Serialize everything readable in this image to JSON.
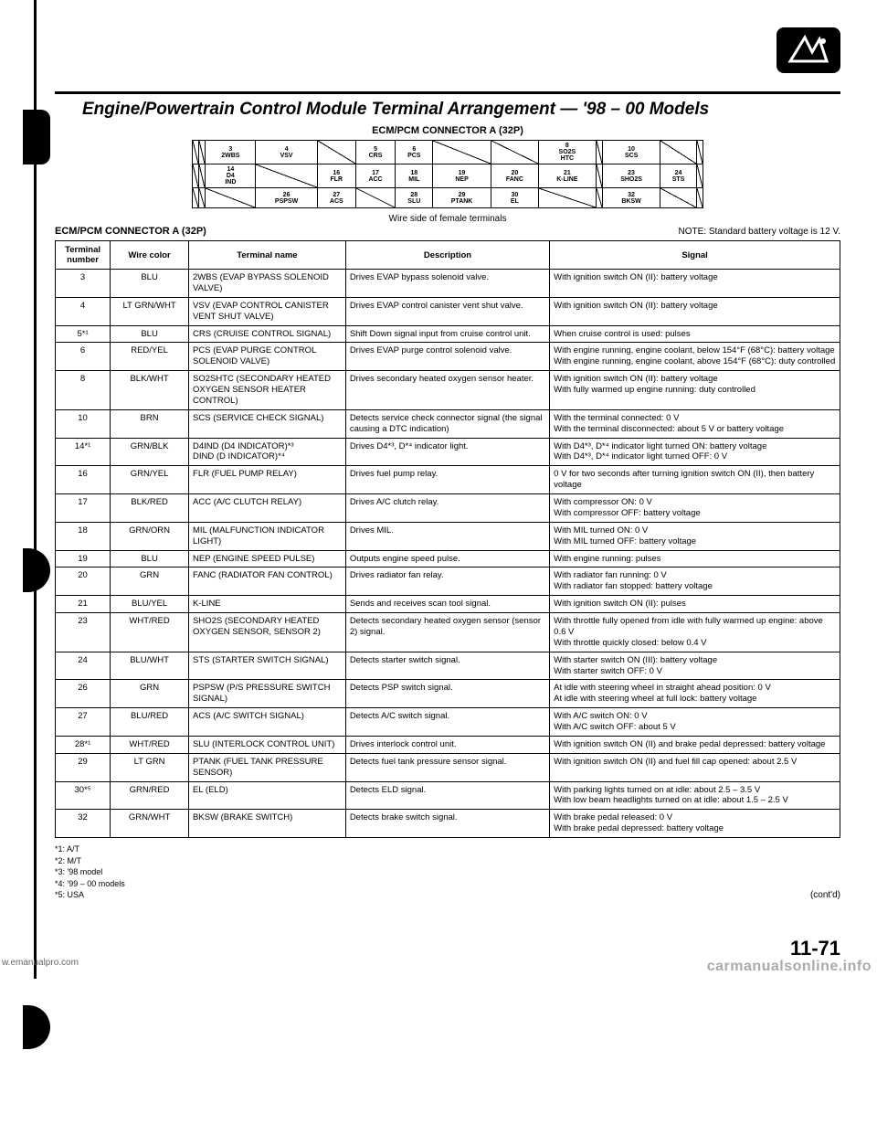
{
  "title": "Engine/Powertrain Control Module Terminal Arrangement — '98 – 00 Models",
  "connector_title": "ECM/PCM CONNECTOR A (32P)",
  "wire_side_note": "Wire side of female terminals",
  "connector_label": "ECM/PCM CONNECTOR A (32P)",
  "note": "NOTE: Standard battery voltage is 12 V.",
  "headers": {
    "terminal": "Terminal number",
    "color": "Wire color",
    "name": "Terminal name",
    "desc": "Description",
    "signal": "Signal"
  },
  "connector_pins": {
    "r1": [
      "",
      "",
      "3\n2WBS",
      "4\nVSV",
      "",
      "5\nCRS",
      "6\nPCS",
      "",
      "",
      "8\nSO2S\nHTC",
      "",
      "10\nSCS",
      "",
      ""
    ],
    "r2": [
      "",
      "",
      "14\nD4\nIND",
      "",
      "16\nFLR",
      "17\nACC",
      "18\nMIL",
      "19\nNEP",
      "20\nFANC",
      "21\nK-LINE",
      "",
      "23\nSHO2S",
      "24\nSTS",
      ""
    ],
    "r3": [
      "",
      "",
      "",
      "26\nPSPSW",
      "27\nACS",
      "",
      "28\nSLU",
      "29\nPTANK",
      "30\nEL",
      "",
      "",
      "32\nBKSW",
      "",
      ""
    ]
  },
  "rows": [
    {
      "t": "3",
      "c": "BLU",
      "n": "2WBS (EVAP BYPASS SOLENOID VALVE)",
      "d": "Drives EVAP bypass solenoid valve.",
      "s": "With ignition switch ON (II): battery voltage"
    },
    {
      "t": "4",
      "c": "LT GRN/WHT",
      "n": "VSV (EVAP CONTROL CANISTER VENT SHUT VALVE)",
      "d": "Drives EVAP control canister vent shut valve.",
      "s": "With ignition switch ON (II): battery voltage"
    },
    {
      "t": "5*¹",
      "c": "BLU",
      "n": "CRS (CRUISE CONTROL SIGNAL)",
      "d": "Shift Down signal input from cruise control unit.",
      "s": "When cruise control is used: pulses"
    },
    {
      "t": "6",
      "c": "RED/YEL",
      "n": "PCS (EVAP PURGE CONTROL SOLENOID VALVE)",
      "d": "Drives EVAP purge control solenoid valve.",
      "s": "With engine running, engine coolant, below 154°F (68°C): battery voltage\nWith engine running, engine coolant, above 154°F (68°C): duty controlled"
    },
    {
      "t": "8",
      "c": "BLK/WHT",
      "n": "SO2SHTC (SECONDARY HEATED OXYGEN SENSOR HEATER CONTROL)",
      "d": "Drives secondary heated oxygen sensor heater.",
      "s": "With ignition switch ON (II): battery voltage\nWith fully warmed up engine running: duty controlled"
    },
    {
      "t": "10",
      "c": "BRN",
      "n": "SCS (SERVICE CHECK SIGNAL)",
      "d": "Detects service check connector signal (the signal causing a DTC indication)",
      "s": "With the terminal connected: 0 V\nWith the terminal disconnected: about 5 V or battery voltage"
    },
    {
      "t": "14*¹",
      "c": "GRN/BLK",
      "n": "D4IND (D4 INDICATOR)*³\nDIND (D INDICATOR)*⁴",
      "d": "Drives D4*³, D*⁴ indicator light.",
      "s": "With D4*³, D*⁴ indicator light turned ON: battery voltage\nWith D4*³, D*⁴ indicator light turned OFF: 0 V"
    },
    {
      "t": "16",
      "c": "GRN/YEL",
      "n": "FLR (FUEL PUMP RELAY)",
      "d": "Drives fuel pump relay.",
      "s": "0 V for two seconds after turning ignition switch ON (II), then battery voltage"
    },
    {
      "t": "17",
      "c": "BLK/RED",
      "n": "ACC (A/C CLUTCH RELAY)",
      "d": "Drives A/C clutch relay.",
      "s": "With compressor ON: 0 V\nWith compressor OFF: battery voltage"
    },
    {
      "t": "18",
      "c": "GRN/ORN",
      "n": "MIL (MALFUNCTION INDICATOR LIGHT)",
      "d": "Drives MIL.",
      "s": "With MIL turned ON: 0 V\nWith MIL turned OFF: battery voltage"
    },
    {
      "t": "19",
      "c": "BLU",
      "n": "NEP (ENGINE SPEED PULSE)",
      "d": "Outputs engine speed pulse.",
      "s": "With engine running: pulses"
    },
    {
      "t": "20",
      "c": "GRN",
      "n": "FANC (RADIATOR FAN CONTROL)",
      "d": "Drives radiator fan relay.",
      "s": "With radiator fan running: 0 V\nWith radiator fan stopped: battery voltage"
    },
    {
      "t": "21",
      "c": "BLU/YEL",
      "n": "K-LINE",
      "d": "Sends and receives scan tool signal.",
      "s": "With ignition switch ON (II): pulses"
    },
    {
      "t": "23",
      "c": "WHT/RED",
      "n": "SHO2S (SECONDARY HEATED OXYGEN SENSOR, SENSOR 2)",
      "d": "Detects secondary heated oxygen sensor (sensor 2) signal.",
      "s": "With throttle fully opened from idle with fully warmed up engine: above 0.6 V\nWith throttle quickly closed: below 0.4 V"
    },
    {
      "t": "24",
      "c": "BLU/WHT",
      "n": "STS (STARTER SWITCH SIGNAL)",
      "d": "Detects starter switch signal.",
      "s": "With starter switch ON (III): battery voltage\nWith starter switch OFF: 0 V"
    },
    {
      "t": "26",
      "c": "GRN",
      "n": "PSPSW (P/S PRESSURE SWITCH SIGNAL)",
      "d": "Detects PSP switch signal.",
      "s": "At idle with steering wheel in straight ahead position: 0 V\nAt idle with steering wheel at full lock: battery voltage"
    },
    {
      "t": "27",
      "c": "BLU/RED",
      "n": "ACS (A/C SWITCH SIGNAL)",
      "d": "Detects A/C switch signal.",
      "s": "With A/C switch ON: 0 V\nWith A/C switch OFF: about 5 V"
    },
    {
      "t": "28*¹",
      "c": "WHT/RED",
      "n": "SLU (INTERLOCK CONTROL UNIT)",
      "d": "Drives interlock control unit.",
      "s": "With ignition switch ON (II) and brake pedal depressed: battery voltage"
    },
    {
      "t": "29",
      "c": "LT GRN",
      "n": "PTANK (FUEL TANK PRESSURE SENSOR)",
      "d": "Detects fuel tank pressure sensor signal.",
      "s": "With ignition switch ON (II) and fuel fill cap opened: about 2.5 V"
    },
    {
      "t": "30*⁵",
      "c": "GRN/RED",
      "n": "EL (ELD)",
      "d": "Detects ELD signal.",
      "s": "With parking lights turned on at idle: about 2.5 – 3.5 V\nWith low beam headlights turned on at idle: about 1.5 – 2.5 V"
    },
    {
      "t": "32",
      "c": "GRN/WHT",
      "n": "BKSW (BRAKE SWITCH)",
      "d": "Detects brake switch signal.",
      "s": "With brake pedal released: 0 V\nWith brake pedal depressed: battery voltage"
    }
  ],
  "footnotes": [
    "*1: A/T",
    "*2: M/T",
    "*3: '98 model",
    "*4: '99 – 00 models",
    "*5: USA"
  ],
  "contd": "(cont'd)",
  "page_number": "11-71",
  "watermark_left": "w.emanualpro.com",
  "watermark_right": "carmanualsonline.info"
}
